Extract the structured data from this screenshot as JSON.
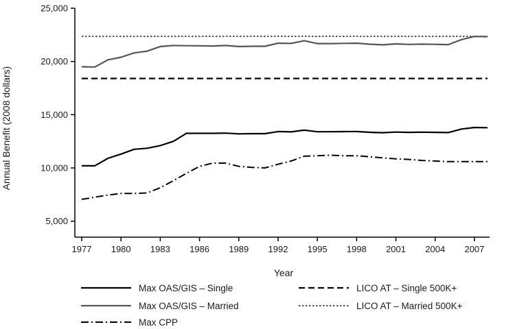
{
  "chart_data": {
    "type": "line",
    "xlabel": "Year",
    "ylabel": "Annual Benefit (2008 dollars)",
    "xlim": [
      1977,
      2008
    ],
    "ylim": [
      3500,
      25000
    ],
    "x_ticks": [
      1977,
      1980,
      1983,
      1986,
      1989,
      1992,
      1995,
      1998,
      2001,
      2004,
      2007
    ],
    "y_ticks": [
      5000,
      10000,
      15000,
      20000,
      25000
    ],
    "x_tick_labels": [
      "1977",
      "1980",
      "1983",
      "1986",
      "1989",
      "1992",
      "1995",
      "1998",
      "2001",
      "2004",
      "2007"
    ],
    "y_tick_labels": [
      "5,000",
      "10,000",
      "15,000",
      "20,000",
      "25,000"
    ],
    "grid": false,
    "legend_position": "bottom",
    "x": [
      1977,
      1978,
      1979,
      1980,
      1981,
      1982,
      1983,
      1984,
      1985,
      1986,
      1987,
      1988,
      1989,
      1990,
      1991,
      1992,
      1993,
      1994,
      1995,
      1996,
      1997,
      1998,
      1999,
      2000,
      2001,
      2002,
      2003,
      2004,
      2005,
      2006,
      2007,
      2008
    ],
    "series": [
      {
        "name": "Max OAS/GIS – Single",
        "color": "#000000",
        "dash": "solid",
        "values": [
          10200,
          10200,
          10900,
          11300,
          11750,
          11850,
          12100,
          12500,
          13250,
          13250,
          13250,
          13270,
          13200,
          13220,
          13220,
          13420,
          13390,
          13550,
          13400,
          13400,
          13410,
          13420,
          13350,
          13310,
          13370,
          13340,
          13360,
          13340,
          13320,
          13650,
          13800,
          13780
        ]
      },
      {
        "name": "Max OAS/GIS – Married",
        "color": "#555555",
        "dash": "solid",
        "values": [
          19500,
          19480,
          20150,
          20400,
          20800,
          20970,
          21400,
          21500,
          21480,
          21470,
          21450,
          21500,
          21400,
          21430,
          21430,
          21720,
          21700,
          21950,
          21680,
          21680,
          21700,
          21720,
          21620,
          21560,
          21650,
          21600,
          21630,
          21610,
          21580,
          22050,
          22350,
          22330
        ]
      },
      {
        "name": "Max CPP",
        "color": "#000000",
        "dash": "dashdot",
        "values": [
          7050,
          7250,
          7450,
          7600,
          7600,
          7650,
          8150,
          8800,
          9500,
          10150,
          10450,
          10450,
          10150,
          10050,
          10000,
          10350,
          10650,
          11100,
          11150,
          11200,
          11150,
          11150,
          11050,
          10950,
          10850,
          10800,
          10700,
          10650,
          10600,
          10600,
          10600,
          10600
        ]
      },
      {
        "name": "LICO AT – Single 500K+",
        "color": "#000000",
        "dash": "dashed",
        "values": [
          18400,
          18400,
          18400,
          18400,
          18400,
          18400,
          18400,
          18400,
          18400,
          18400,
          18400,
          18400,
          18400,
          18400,
          18400,
          18400,
          18400,
          18400,
          18400,
          18400,
          18400,
          18400,
          18400,
          18400,
          18400,
          18400,
          18400,
          18400,
          18400,
          18400,
          18400,
          18400
        ]
      },
      {
        "name": "LICO AT – Married 500K+",
        "color": "#555555",
        "dash": "dotted",
        "values": [
          22360,
          22360,
          22360,
          22360,
          22360,
          22360,
          22360,
          22360,
          22360,
          22360,
          22360,
          22360,
          22360,
          22360,
          22360,
          22360,
          22360,
          22360,
          22360,
          22360,
          22360,
          22360,
          22360,
          22360,
          22360,
          22360,
          22360,
          22360,
          22360,
          22360,
          22360,
          22360
        ]
      }
    ]
  }
}
